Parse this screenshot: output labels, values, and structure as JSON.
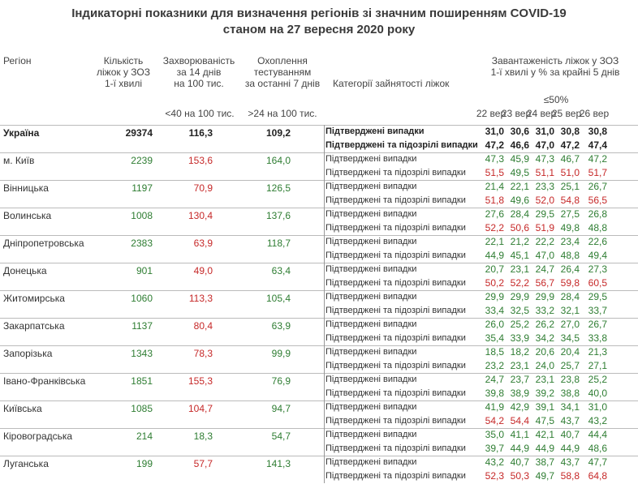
{
  "title_line1": "Індикаторні показники для визначення регіонів зі значним поширенням COVID-19",
  "title_line2": "станом на 27 вересня 2020 року",
  "headers": {
    "region": "Регіон",
    "beds_l1": "Кількість",
    "beds_l2": "ліжок у ЗОЗ",
    "beds_l3": "1-ї хвилі",
    "inc_l1": "Захворюваність",
    "inc_l2": "за 14 днів",
    "inc_l3": "на 100 тис.",
    "test_l1": "Охоплення",
    "test_l2": "тестуванням",
    "test_l3": "за останні 7 днів",
    "category": "Категорії зайнятості ліжок",
    "load_l1": "Завантаженість ліжок у ЗОЗ",
    "load_l2": "1-ї хвилі у % за крайні 5 днів",
    "thr_inc": "<40 на 100 тис.",
    "thr_test": ">24 на 100 тис.",
    "thr_load": "≤50%",
    "dates": [
      "22 вер",
      "23 вер",
      "24 вер",
      "25 вер",
      "26 вер"
    ]
  },
  "categories": {
    "confirmed": "Підтверджені випадки",
    "suspected": "Підтверджені та підозрілі випадки"
  },
  "rows": [
    {
      "region": "Україна",
      "beds": "29374",
      "incidence": "116,3",
      "testing": "109,2",
      "conf": [
        "31,0",
        "30,6",
        "31,0",
        "30,8",
        "30,8"
      ],
      "susp": [
        "47,2",
        "46,6",
        "47,0",
        "47,2",
        "47,4"
      ]
    },
    {
      "region": "м. Київ",
      "beds": "2239",
      "incidence": "153,6",
      "testing": "164,0",
      "conf": [
        "47,3",
        "45,9",
        "47,3",
        "46,7",
        "47,2"
      ],
      "susp": [
        "51,5",
        "49,5",
        "51,1",
        "51,0",
        "51,7"
      ]
    },
    {
      "region": "Вінницька",
      "beds": "1197",
      "incidence": "70,9",
      "testing": "126,5",
      "conf": [
        "21,4",
        "22,1",
        "23,3",
        "25,1",
        "26,7"
      ],
      "susp": [
        "51,8",
        "49,6",
        "52,0",
        "54,8",
        "56,5"
      ]
    },
    {
      "region": "Волинська",
      "beds": "1008",
      "incidence": "130,4",
      "testing": "137,6",
      "conf": [
        "27,6",
        "28,4",
        "29,5",
        "27,5",
        "26,8"
      ],
      "susp": [
        "52,2",
        "50,6",
        "51,9",
        "49,8",
        "48,8"
      ]
    },
    {
      "region": "Дніпропетровська",
      "beds": "2383",
      "incidence": "63,9",
      "testing": "118,7",
      "conf": [
        "22,1",
        "21,2",
        "22,2",
        "23,4",
        "22,6"
      ],
      "susp": [
        "44,9",
        "45,1",
        "47,0",
        "48,8",
        "49,4"
      ]
    },
    {
      "region": "Донецька",
      "beds": "901",
      "incidence": "49,0",
      "testing": "63,4",
      "conf": [
        "20,7",
        "23,1",
        "24,7",
        "26,4",
        "27,3"
      ],
      "susp": [
        "50,2",
        "52,2",
        "56,7",
        "59,8",
        "60,5"
      ]
    },
    {
      "region": "Житомирська",
      "beds": "1060",
      "incidence": "113,3",
      "testing": "105,4",
      "conf": [
        "29,9",
        "29,9",
        "29,9",
        "28,4",
        "29,5"
      ],
      "susp": [
        "33,4",
        "32,5",
        "33,2",
        "32,1",
        "33,7"
      ]
    },
    {
      "region": "Закарпатська",
      "beds": "1137",
      "incidence": "80,4",
      "testing": "63,9",
      "conf": [
        "26,0",
        "25,2",
        "26,2",
        "27,0",
        "26,7"
      ],
      "susp": [
        "35,4",
        "33,9",
        "34,2",
        "34,5",
        "33,8"
      ]
    },
    {
      "region": "Запорізька",
      "beds": "1343",
      "incidence": "78,3",
      "testing": "99,9",
      "conf": [
        "18,5",
        "18,2",
        "20,6",
        "20,4",
        "21,3"
      ],
      "susp": [
        "23,2",
        "23,1",
        "24,0",
        "25,7",
        "27,1"
      ]
    },
    {
      "region": "Івано-Франківська",
      "beds": "1851",
      "incidence": "155,3",
      "testing": "76,9",
      "conf": [
        "24,7",
        "23,7",
        "23,1",
        "23,8",
        "25,2"
      ],
      "susp": [
        "39,8",
        "38,9",
        "39,2",
        "38,8",
        "40,0"
      ]
    },
    {
      "region": "Київська",
      "beds": "1085",
      "incidence": "104,7",
      "testing": "94,7",
      "conf": [
        "41,9",
        "42,9",
        "39,1",
        "34,1",
        "31,0"
      ],
      "susp": [
        "54,2",
        "54,4",
        "47,5",
        "43,7",
        "43,2"
      ]
    },
    {
      "region": "Кіровоградська",
      "beds": "214",
      "incidence": "18,3",
      "testing": "54,7",
      "conf": [
        "35,0",
        "41,1",
        "42,1",
        "40,7",
        "44,4"
      ],
      "susp": [
        "39,7",
        "44,9",
        "44,9",
        "44,9",
        "48,6"
      ]
    },
    {
      "region": "Луганська",
      "beds": "199",
      "incidence": "57,7",
      "testing": "141,3",
      "conf": [
        "43,2",
        "40,7",
        "38,7",
        "43,7",
        "47,7"
      ],
      "susp": [
        "52,3",
        "50,3",
        "49,7",
        "58,8",
        "64,8"
      ]
    }
  ],
  "colors": {
    "green": "#2e7d32",
    "red": "#c62828"
  }
}
